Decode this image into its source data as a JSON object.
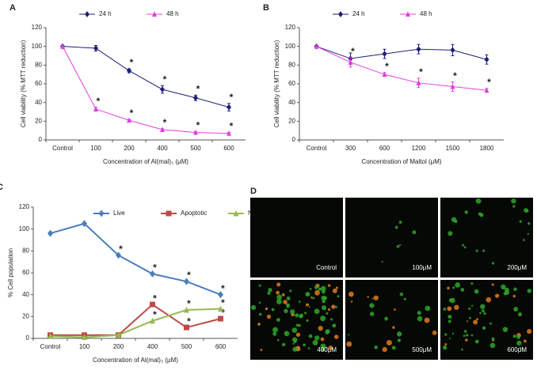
{
  "chart_data": [
    {
      "type": "line",
      "panel_label": "A",
      "x_label": "Concentration of Al(mal)₃ (μM)",
      "y_label": "Cell viability (% MTT reduction)",
      "categories": [
        "Control",
        "100",
        "200",
        "400",
        "500",
        "600"
      ],
      "series": [
        {
          "name": "24 h",
          "color": "#1f1f7a",
          "marker": "diamond",
          "values": [
            100,
            98,
            74,
            54,
            45,
            35
          ],
          "errors": [
            0,
            3,
            2,
            4,
            3,
            4
          ],
          "significance": [
            null,
            null,
            "*",
            "*",
            "*",
            "*"
          ]
        },
        {
          "name": "48 h",
          "color": "#e040e0",
          "marker": "triangle",
          "values": [
            100,
            33,
            21,
            11,
            8,
            7
          ],
          "errors": [
            0,
            2,
            1,
            1,
            1,
            1
          ],
          "significance": [
            null,
            "*",
            "*",
            "*",
            "*",
            "*"
          ]
        }
      ],
      "ylim": [
        0,
        120
      ],
      "yticks": [
        0,
        20,
        40,
        60,
        80,
        100,
        120
      ]
    },
    {
      "type": "line",
      "panel_label": "B",
      "x_label": "Concentration of Maltol (μM)",
      "y_label": "Cell viability (% MTT reduction)",
      "categories": [
        "Control",
        "300",
        "600",
        "1200",
        "1500",
        "1800"
      ],
      "series": [
        {
          "name": "24 h",
          "color": "#1f1f7a",
          "marker": "diamond",
          "values": [
            100,
            87,
            92,
            97,
            96,
            86
          ],
          "errors": [
            0,
            6,
            5,
            5,
            6,
            5
          ],
          "significance": [
            null,
            null,
            null,
            null,
            null,
            null
          ]
        },
        {
          "name": "48 h",
          "color": "#e040e0",
          "marker": "triangle",
          "values": [
            100,
            83,
            70,
            61,
            57,
            53
          ],
          "errors": [
            0,
            5,
            2,
            5,
            5,
            2
          ],
          "significance": [
            null,
            "*",
            "*",
            "*",
            "*",
            "*"
          ]
        }
      ],
      "ylim": [
        0,
        120
      ],
      "yticks": [
        0,
        20,
        40,
        60,
        80,
        100,
        120
      ]
    },
    {
      "type": "line",
      "panel_label": "C",
      "x_label": "Concentration of Al(mal)₃ (μM)",
      "y_label": "% Cell population",
      "categories": [
        "Control",
        "100",
        "200",
        "400",
        "500",
        "600"
      ],
      "series": [
        {
          "name": "Live",
          "color": "#4a7ebb",
          "marker": "diamond",
          "values": [
            96,
            105,
            76,
            59,
            52,
            40
          ],
          "significance": [
            null,
            null,
            "*",
            "*",
            "*",
            "*"
          ]
        },
        {
          "name": "Apoptotic",
          "color": "#be4b48",
          "marker": "square",
          "values": [
            3,
            3,
            3,
            31,
            10,
            18
          ],
          "significance": [
            null,
            null,
            null,
            "*",
            "*",
            "*"
          ]
        },
        {
          "name": "Necrotic",
          "color": "#98b954",
          "marker": "triangle",
          "values": [
            2,
            1,
            3,
            16,
            26,
            27
          ],
          "significance": [
            null,
            null,
            null,
            "*",
            "*",
            "*"
          ]
        }
      ],
      "ylim": [
        0,
        120
      ],
      "yticks": [
        0,
        20,
        40,
        60,
        80,
        100,
        120
      ]
    }
  ],
  "panel_d": {
    "panel_label": "D",
    "images": [
      {
        "label": "Control"
      },
      {
        "label": "100μM"
      },
      {
        "label": "200μM"
      },
      {
        "label": "400μM"
      },
      {
        "label": "500μM"
      },
      {
        "label": "600μM"
      }
    ]
  }
}
